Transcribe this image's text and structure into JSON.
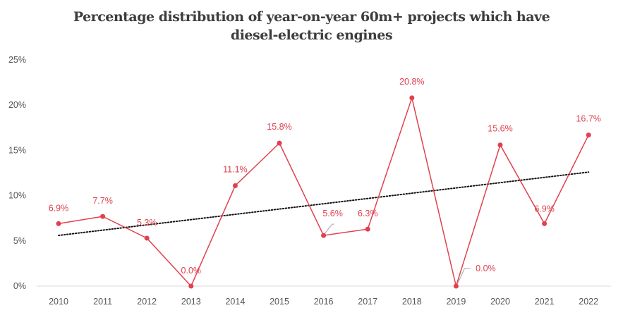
{
  "chart_data": {
    "type": "line",
    "title_line1": "Percentage distribution of year-on-year 60m+ projects which have",
    "title_line2": "diesel-electric engines",
    "x": [
      "2010",
      "2011",
      "2012",
      "2013",
      "2014",
      "2015",
      "2016",
      "2017",
      "2018",
      "2019",
      "2020",
      "2021",
      "2022"
    ],
    "series": [
      {
        "values": [
          6.9,
          7.7,
          5.3,
          0.0,
          11.1,
          15.8,
          5.6,
          6.3,
          20.8,
          0.0,
          15.6,
          6.9,
          16.7
        ],
        "labels": [
          "6.9%",
          "7.7%",
          "5.3%",
          "0.0%",
          "11.1%",
          "15.8%",
          "5.6%",
          "6.3%",
          "20.8%",
          "0.0%",
          "15.6%",
          "6.9%",
          "16.7%"
        ],
        "color": "#e0414f"
      }
    ],
    "trendline": {
      "style": "dotted",
      "color": "#111111",
      "start": 5.6,
      "end": 12.6
    },
    "yticks": [
      "0%",
      "5%",
      "10%",
      "15%",
      "20%",
      "25%"
    ],
    "ylim": [
      0,
      25
    ],
    "grid": false,
    "legend": "none"
  }
}
